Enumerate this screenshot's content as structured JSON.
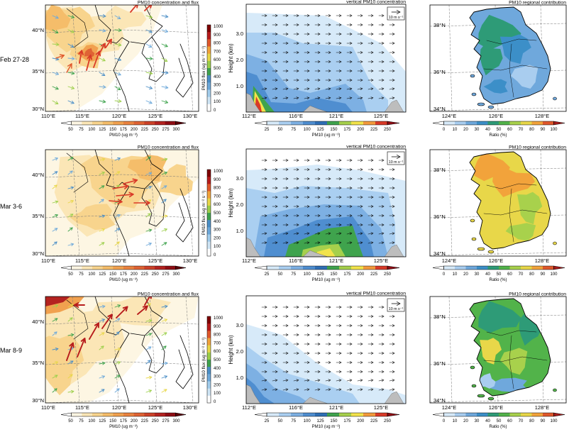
{
  "rows": [
    {
      "label": "Feb 27-28",
      "scene": "feb"
    },
    {
      "label": "Mar 3-6",
      "scene": "mar3"
    },
    {
      "label": "Mar 8-9",
      "scene": "mar8"
    }
  ],
  "panels": {
    "map": {
      "title": "PM10 concentration and flux",
      "lon_ticks": [
        "110°E",
        "115°E",
        "120°E",
        "125°E",
        "130°E"
      ],
      "lat_ticks": [
        "40°N",
        "35°N",
        "30°N"
      ],
      "conc_colorbar": {
        "ticks": [
          "50",
          "75",
          "100",
          "125",
          "150",
          "175",
          "200",
          "225",
          "250",
          "275",
          "300"
        ],
        "label": "PM10 (ug m⁻³)"
      },
      "flux_colorbar": {
        "ticks": [
          "1000",
          "900",
          "800",
          "700",
          "600",
          "500",
          "400",
          "300",
          "200",
          "100",
          "0"
        ],
        "label": "PM10 flux (ug m⁻² s⁻¹)",
        "label_alt": "PM10 flux (ug m⁻² s⁻¹)"
      }
    },
    "section": {
      "title": "vertical PM10 concentration",
      "ylabel": "Height (km)",
      "y_ticks": [
        "3.0",
        "2.0",
        "1.0"
      ],
      "lon_ticks": [
        "112°E",
        "116°E",
        "121°E",
        "125°E"
      ],
      "ref_vector": "10 m s⁻¹",
      "colorbar": {
        "ticks": [
          "25",
          "50",
          "75",
          "100",
          "125",
          "150",
          "175",
          "200",
          "225",
          "250"
        ],
        "label": "PM10 (ug m⁻³)"
      }
    },
    "contribution": {
      "title": "PM10 regional contribution",
      "lon_ticks": [
        "124°E",
        "126°E",
        "128°E"
      ],
      "lat_ticks": [
        "38°N",
        "36°N",
        "34°N"
      ],
      "colorbar": {
        "ticks": [
          "0",
          "10",
          "20",
          "30",
          "40",
          "50",
          "60",
          "70",
          "80",
          "90",
          "100"
        ],
        "label": "Ratio (%)"
      }
    }
  },
  "colors": {
    "conc_scale": [
      "#fdf6e3",
      "#fbe6b6",
      "#f8d48d",
      "#f5bd6a",
      "#f1a14f",
      "#ea8340",
      "#df6334",
      "#cc4229",
      "#b42320",
      "#8f0d14"
    ],
    "flux_scale": [
      "#ffffff",
      "#cfe5f5",
      "#a3cdec",
      "#6ea9da",
      "#4c8fc7",
      "#3fa34d",
      "#9ccf4a",
      "#e8d749",
      "#f2a33b",
      "#e0582c",
      "#b71c1c",
      "#7f0000"
    ],
    "section_scale": [
      "#ffffff",
      "#d7eaf9",
      "#aacff1",
      "#7db0e3",
      "#4f8ed0",
      "#2f6fb5",
      "#3fa34d",
      "#a6d04c",
      "#f2e34b",
      "#f39a3c",
      "#d93a28",
      "#8f0d14"
    ],
    "ratio_scale": [
      "#ffffff",
      "#d7eaf9",
      "#a9cdef",
      "#6fa8dc",
      "#3c8fc8",
      "#2e9b77",
      "#52b34a",
      "#a8d14c",
      "#e8d749",
      "#f2a33b",
      "#e0582c",
      "#a51b1b"
    ],
    "terrain": "#bdbdbd"
  }
}
